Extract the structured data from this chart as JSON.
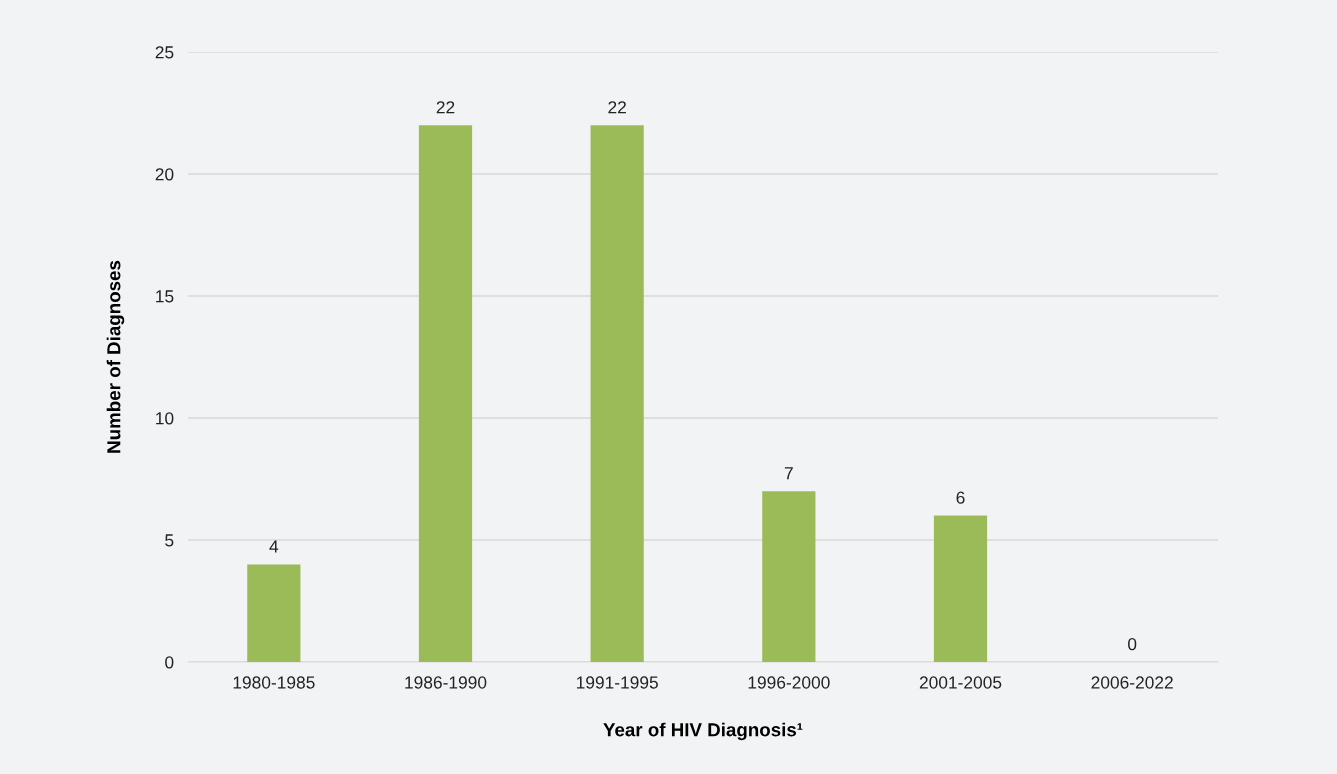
{
  "chart_data": {
    "type": "bar",
    "xlabel": "Year of HIV Diagnosis¹",
    "ylabel": "Number of Diagnoses",
    "categories": [
      "1980-1985",
      "1986-1990",
      "1991-1995",
      "1996-2000",
      "2001-2005",
      "2006-2022"
    ],
    "values": [
      4,
      22,
      22,
      7,
      6,
      0
    ],
    "color": "#9bbb59",
    "ylim": [
      0,
      25
    ],
    "yticks": [
      0,
      5,
      10,
      15,
      20,
      25
    ],
    "grid": "y",
    "data_labels": true
  }
}
